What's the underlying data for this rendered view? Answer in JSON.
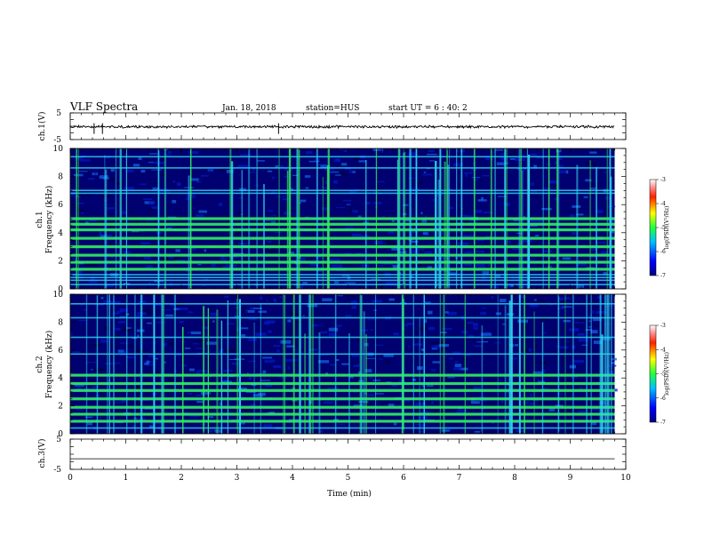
{
  "header": {
    "title": "VLF Spectra",
    "date": "Jan. 18, 2018",
    "station": "station=HUS",
    "start": "start UT =  6 : 40: 2"
  },
  "chart_data": [
    {
      "type": "line",
      "title": "",
      "ylabel": "ch.1(V)",
      "xlabel": "",
      "xlim": [
        0,
        10
      ],
      "ylim": [
        -5,
        5
      ],
      "y_ticks": [
        "5",
        "-5"
      ],
      "series": [
        {
          "x": [
            0,
            9.8
          ],
          "values": [
            -0.2,
            -0.2
          ]
        }
      ]
    },
    {
      "type": "heatmap",
      "ylabel": "ch.1\nFrequency (kHz)",
      "xlim": [
        0,
        10
      ],
      "ylim": [
        0,
        10
      ],
      "y_ticks": [
        "0",
        "2",
        "4",
        "6",
        "8",
        "10"
      ],
      "data_extent_x": [
        0,
        9.8
      ],
      "colorbar": {
        "label": "log(PSD)(V²/Hz)",
        "range": [
          -7,
          -3
        ],
        "ticks": [
          "-3",
          "-4",
          "-5",
          "-6",
          "-7"
        ]
      },
      "horizontal_lines_khz": [
        0.3,
        0.6,
        0.8,
        1.0,
        1.4,
        1.9,
        2.4,
        3.0,
        3.6,
        4.2,
        4.6,
        5.0,
        6.8,
        7.0,
        8.6,
        9.4
      ],
      "green_lines_khz": [
        1.4,
        1.9,
        2.4,
        3.0,
        3.6,
        4.2,
        4.6,
        5.0
      ]
    },
    {
      "type": "heatmap",
      "ylabel": "ch.2\nFrequency (kHz)",
      "xlim": [
        0,
        10
      ],
      "ylim": [
        0,
        10
      ],
      "y_ticks": [
        "0",
        "2",
        "4",
        "6",
        "8",
        "10"
      ],
      "data_extent_x": [
        0,
        9.8
      ],
      "colorbar": {
        "label": "log(PSD)(V²/Hz)",
        "range": [
          -7,
          -3
        ],
        "ticks": [
          "-3",
          "-4",
          "-5",
          "-6",
          "-7"
        ]
      },
      "horizontal_lines_khz": [
        0.4,
        0.9,
        1.4,
        1.9,
        2.5,
        3.1,
        3.6,
        4.2,
        5.7,
        6.9,
        8.3,
        9.3
      ],
      "green_lines_khz": [
        0.9,
        1.4,
        1.9,
        2.5,
        3.1,
        3.6,
        4.2
      ]
    },
    {
      "type": "line",
      "ylabel": "ch.3(V)",
      "xlabel": "Time (min)",
      "xlim": [
        0,
        10
      ],
      "ylim": [
        -5,
        5
      ],
      "y_ticks": [
        "5",
        "-5"
      ],
      "x_ticks": [
        "0",
        "1",
        "2",
        "3",
        "4",
        "5",
        "6",
        "7",
        "8",
        "9",
        "10"
      ],
      "series": [
        {
          "x": [
            0,
            9.8
          ],
          "values": [
            -1.5,
            -1.5
          ]
        }
      ]
    }
  ],
  "colors": {
    "background_dark": "#000070",
    "background_mid": "#0018c0",
    "cyan": "#30d8f0",
    "green": "#30f060"
  }
}
